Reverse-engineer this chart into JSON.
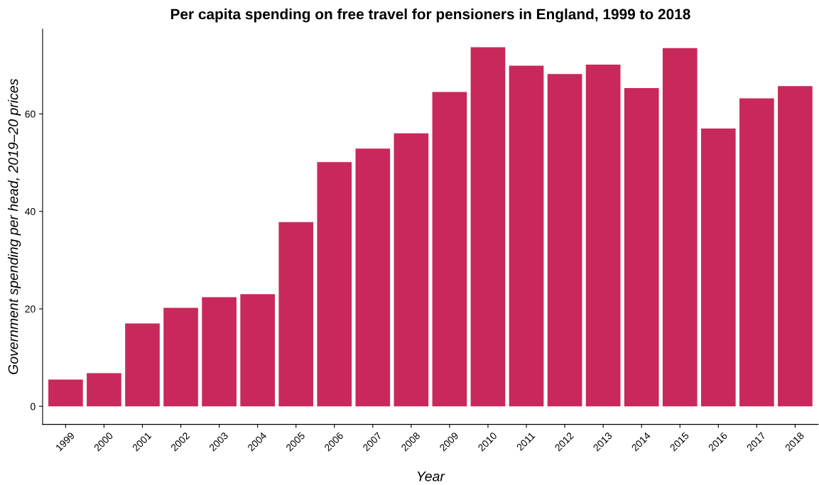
{
  "chart_data": {
    "type": "bar",
    "title": "Per capita spending on free travel for pensioners in England, 1999 to 2018",
    "xlabel": "Year",
    "ylabel": "Government spending per head, 2019–20 prices",
    "categories": [
      "1999",
      "2000",
      "2001",
      "2002",
      "2003",
      "2004",
      "2005",
      "2006",
      "2007",
      "2008",
      "2009",
      "2010",
      "2011",
      "2012",
      "2013",
      "2014",
      "2015",
      "2016",
      "2017",
      "2018"
    ],
    "values": [
      5.5,
      6.8,
      17.0,
      20.2,
      22.4,
      23.0,
      37.8,
      50.1,
      52.9,
      56.0,
      64.5,
      73.7,
      69.9,
      68.2,
      70.1,
      65.3,
      73.5,
      57.0,
      63.2,
      65.7
    ],
    "color": "#c9285a",
    "ylim": [
      -3.7,
      77.4
    ],
    "yticks": [
      0,
      20,
      40,
      60
    ],
    "grid": false,
    "legend": false
  }
}
